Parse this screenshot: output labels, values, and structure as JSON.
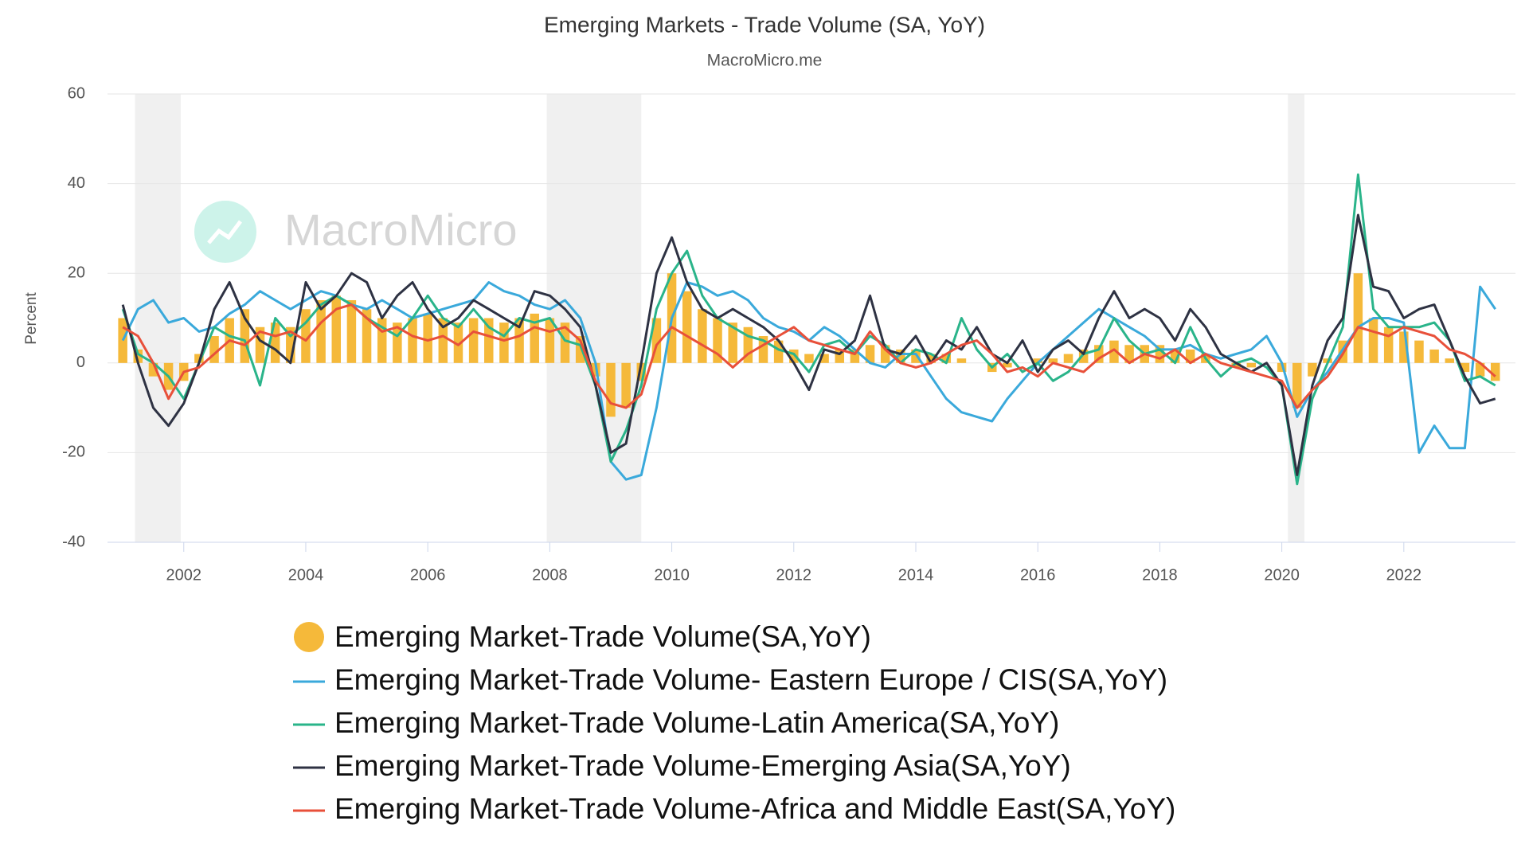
{
  "chart_data": {
    "type": "line",
    "title": "Emerging Markets - Trade Volume (SA, YoY)",
    "subtitle": "MacroMicro.me",
    "watermark": "MacroMicro",
    "y_label": "Percent",
    "xlim": [
      2000.75,
      2023.83
    ],
    "xticks": [
      2002,
      2004,
      2006,
      2008,
      2010,
      2012,
      2014,
      2016,
      2018,
      2020,
      2022
    ],
    "ylim": [
      -40,
      60
    ],
    "yticks": [
      -40,
      -20,
      0,
      20,
      40,
      60
    ],
    "grid": true,
    "shaded_periods": [
      [
        2001.2,
        2001.95
      ],
      [
        2007.95,
        2009.5
      ],
      [
        2020.1,
        2020.37
      ]
    ],
    "x": [
      2001,
      2001.25,
      2001.5,
      2001.75,
      2002,
      2002.25,
      2002.5,
      2002.75,
      2003,
      2003.25,
      2003.5,
      2003.75,
      2004,
      2004.25,
      2004.5,
      2004.75,
      2005,
      2005.25,
      2005.5,
      2005.75,
      2006,
      2006.25,
      2006.5,
      2006.75,
      2007,
      2007.25,
      2007.5,
      2007.75,
      2008,
      2008.25,
      2008.5,
      2008.75,
      2009,
      2009.25,
      2009.5,
      2009.75,
      2010,
      2010.25,
      2010.5,
      2010.75,
      2011,
      2011.25,
      2011.5,
      2011.75,
      2012,
      2012.25,
      2012.5,
      2012.75,
      2013,
      2013.25,
      2013.5,
      2013.75,
      2014,
      2014.25,
      2014.5,
      2014.75,
      2015,
      2015.25,
      2015.5,
      2015.75,
      2016,
      2016.25,
      2016.5,
      2016.75,
      2017,
      2017.25,
      2017.5,
      2017.75,
      2018,
      2018.25,
      2018.5,
      2018.75,
      2019,
      2019.25,
      2019.5,
      2019.75,
      2020,
      2020.25,
      2020.5,
      2020.75,
      2021,
      2021.25,
      2021.5,
      2021.75,
      2022,
      2022.25,
      2022.5,
      2022.75,
      2023,
      2023.25,
      2023.5
    ],
    "series": [
      {
        "name": "Emerging Market-Trade Volume(SA,YoY)",
        "type": "bar",
        "color": "#f5b93a",
        "values": [
          10,
          3,
          -3,
          -6,
          -4,
          2,
          6,
          10,
          12,
          8,
          9,
          8,
          12,
          14,
          15,
          14,
          12,
          10,
          9,
          10,
          11,
          10,
          9,
          10,
          10,
          9,
          10,
          11,
          10,
          9,
          6,
          -3,
          -12,
          -10,
          -4,
          10,
          20,
          16,
          12,
          10,
          9,
          8,
          6,
          5,
          3,
          2,
          2,
          3,
          3,
          4,
          4,
          3,
          3,
          2,
          2,
          1,
          0,
          -2,
          -1,
          0,
          1,
          1,
          2,
          3,
          4,
          5,
          4,
          4,
          4,
          3,
          3,
          2,
          0,
          -1,
          -1,
          0,
          -2,
          -10,
          -3,
          1,
          5,
          20,
          10,
          8,
          7,
          5,
          3,
          1,
          -2,
          -3,
          -4
        ]
      },
      {
        "name": "Emerging Market-Trade Volume- Eastern Europe / CIS(SA,YoY)",
        "type": "line",
        "color": "#3aa9db",
        "values": [
          5,
          12,
          14,
          9,
          10,
          7,
          8,
          11,
          13,
          16,
          14,
          12,
          14,
          16,
          15,
          13,
          12,
          14,
          12,
          10,
          11,
          12,
          13,
          14,
          18,
          16,
          15,
          13,
          12,
          14,
          10,
          0,
          -22,
          -26,
          -25,
          -10,
          10,
          18,
          17,
          15,
          16,
          14,
          10,
          8,
          7,
          5,
          8,
          6,
          3,
          0,
          -1,
          2,
          2,
          -3,
          -8,
          -11,
          -12,
          -13,
          -8,
          -4,
          0,
          3,
          6,
          9,
          12,
          10,
          8,
          6,
          3,
          3,
          4,
          2,
          1,
          2,
          3,
          6,
          0,
          -12,
          -6,
          -2,
          3,
          8,
          10,
          10,
          9,
          -20,
          -14,
          -19,
          -19,
          17,
          12
        ]
      },
      {
        "name": "Emerging Market-Trade Volume-Latin America(SA,YoY)",
        "type": "line",
        "color": "#2ab48a",
        "values": [
          12,
          2,
          0,
          -3,
          -8,
          0,
          8,
          6,
          5,
          -5,
          10,
          6,
          9,
          13,
          15,
          13,
          10,
          8,
          6,
          10,
          15,
          10,
          8,
          12,
          8,
          6,
          10,
          9,
          10,
          5,
          4,
          -5,
          -22,
          -15,
          -5,
          12,
          20,
          25,
          15,
          10,
          8,
          6,
          5,
          3,
          2,
          -2,
          4,
          5,
          2,
          6,
          4,
          0,
          3,
          2,
          0,
          10,
          3,
          -1,
          2,
          -2,
          0,
          -4,
          -2,
          2,
          3,
          10,
          5,
          2,
          3,
          0,
          8,
          1,
          -3,
          0,
          1,
          -1,
          -5,
          -27,
          -8,
          0,
          8,
          42,
          12,
          8,
          8,
          8,
          9,
          5,
          -4,
          -3,
          -5
        ]
      },
      {
        "name": "Emerging Market-Trade Volume-Emerging Asia(SA,YoY)",
        "type": "line",
        "color": "#2e3243",
        "values": [
          13,
          0,
          -10,
          -14,
          -9,
          0,
          12,
          18,
          10,
          5,
          3,
          0,
          18,
          12,
          15,
          20,
          18,
          10,
          15,
          18,
          12,
          8,
          10,
          14,
          12,
          10,
          8,
          16,
          15,
          12,
          8,
          -5,
          -20,
          -18,
          0,
          20,
          28,
          18,
          12,
          10,
          12,
          10,
          8,
          5,
          0,
          -6,
          3,
          2,
          5,
          15,
          3,
          2,
          6,
          0,
          5,
          3,
          8,
          2,
          0,
          5,
          -2,
          3,
          5,
          2,
          10,
          16,
          10,
          12,
          10,
          5,
          12,
          8,
          2,
          0,
          -2,
          0,
          -5,
          -25,
          -5,
          5,
          10,
          33,
          17,
          16,
          10,
          12,
          13,
          5,
          -3,
          -9,
          -8
        ]
      },
      {
        "name": "Emerging Market-Trade Volume-Africa and Middle East(SA,YoY)",
        "type": "line",
        "color": "#e8503a",
        "values": [
          8,
          6,
          0,
          -8,
          -2,
          -1,
          2,
          5,
          4,
          7,
          6,
          7,
          5,
          9,
          12,
          13,
          10,
          7,
          8,
          6,
          5,
          6,
          4,
          7,
          6,
          5,
          6,
          8,
          7,
          8,
          5,
          -4,
          -9,
          -10,
          -7,
          4,
          8,
          6,
          4,
          2,
          -1,
          2,
          4,
          6,
          8,
          5,
          4,
          3,
          2,
          7,
          3,
          0,
          -1,
          0,
          2,
          4,
          5,
          2,
          -2,
          -1,
          -3,
          0,
          -1,
          -2,
          1,
          3,
          0,
          2,
          1,
          3,
          0,
          2,
          0,
          -1,
          -2,
          -3,
          -4,
          -10,
          -6,
          -3,
          2,
          8,
          7,
          6,
          8,
          7,
          6,
          3,
          2,
          0,
          -3
        ]
      }
    ]
  }
}
